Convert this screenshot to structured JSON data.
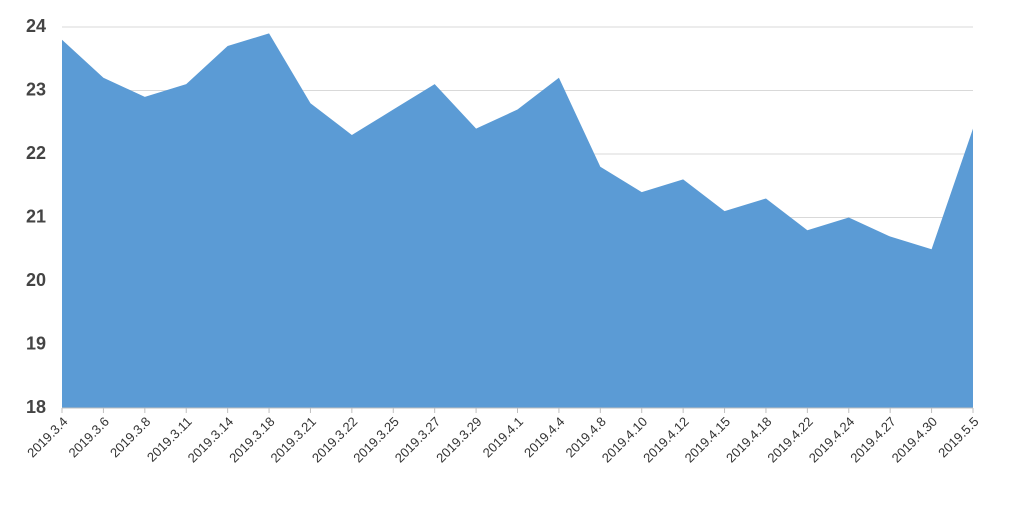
{
  "chart_data": {
    "type": "area",
    "categories": [
      "2019.3.4",
      "2019.3.6",
      "2019.3.8",
      "2019.3.11",
      "2019.3.14",
      "2019.3.18",
      "2019.3.21",
      "2019.3.22",
      "2019.3.25",
      "2019.3.27",
      "2019.3.29",
      "2019.4.1",
      "2019.4.4",
      "2019.4.8",
      "2019.4.10",
      "2019.4.12",
      "2019.4.15",
      "2019.4.18",
      "2019.4.22",
      "2019.4.24",
      "2019.4.27",
      "2019.4.30",
      "2019.5.5"
    ],
    "values": [
      23.8,
      23.2,
      22.9,
      23.1,
      23.7,
      23.9,
      22.8,
      22.3,
      22.7,
      23.1,
      22.4,
      22.7,
      23.2,
      21.8,
      21.4,
      21.6,
      21.1,
      21.3,
      20.8,
      21.0,
      20.7,
      20.5,
      22.4
    ],
    "color": "#5b9bd5",
    "ylim": [
      18,
      24
    ],
    "yticks": [
      18,
      19,
      20,
      21,
      22,
      23,
      24
    ],
    "grid": true
  }
}
